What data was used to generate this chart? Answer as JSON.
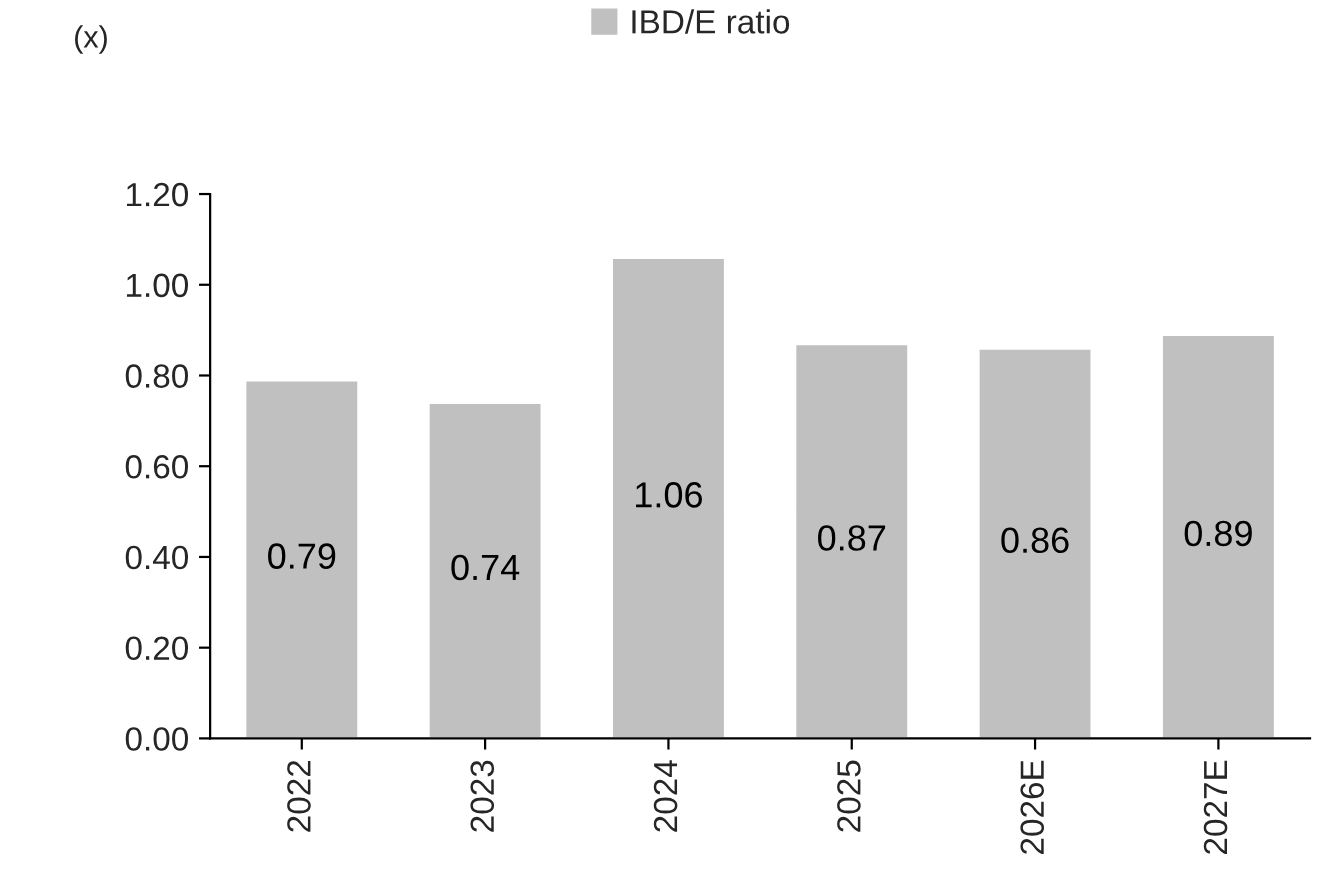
{
  "chart_data": {
    "type": "bar",
    "ylabel": "(x)",
    "categories": [
      "2022",
      "2023",
      "2024",
      "2025",
      "2026E",
      "2027E"
    ],
    "series": [
      {
        "name": "IBD/E ratio",
        "color": "#c0c0c0",
        "values": [
          0.79,
          0.74,
          1.06,
          0.87,
          0.86,
          0.89
        ]
      }
    ],
    "ylim": [
      0,
      1.2
    ],
    "yticks": [
      {
        "value": 0,
        "label": "0.00"
      },
      {
        "value": 0.2,
        "label": "0.20"
      },
      {
        "value": 0.4,
        "label": "0.40"
      },
      {
        "value": 0.6,
        "label": "0.60"
      },
      {
        "value": 0.8,
        "label": "0.80"
      },
      {
        "value": 1.0,
        "label": "1.00"
      },
      {
        "value": 1.2,
        "label": "1.20"
      }
    ],
    "data_labels": true,
    "grid": false,
    "legend": "top"
  }
}
